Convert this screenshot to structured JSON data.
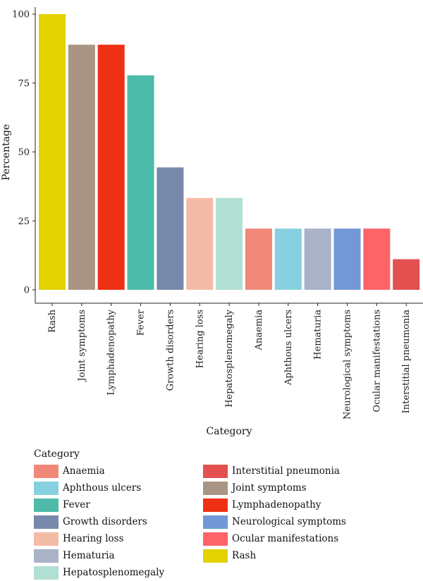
{
  "chart_data": {
    "type": "bar",
    "categories": [
      "Rash",
      "Joint symptoms",
      "Lymphadenopathy",
      "Fever",
      "Growth disorders",
      "Hearing loss",
      "Hepatosplenomegaly",
      "Anaemia",
      "Aphthous ulcers",
      "Hematuria",
      "Neurological symptoms",
      "Ocular manifestations",
      "Interstitial pneumonia"
    ],
    "values": [
      100,
      88.9,
      88.9,
      77.8,
      44.4,
      33.3,
      33.3,
      22.2,
      22.2,
      22.2,
      22.2,
      22.2,
      11.1
    ],
    "colors": [
      "#E2D200",
      "#A89583",
      "#EE3014",
      "#4CBBAA",
      "#7888AA",
      "#F4BBA6",
      "#B2DFD4",
      "#F08878",
      "#87D0E0",
      "#AAB2C8",
      "#7298D8",
      "#FC6469",
      "#E35050"
    ],
    "xlabel": "Category",
    "ylabel": "Percentage",
    "ylim": [
      0,
      100
    ],
    "yticks": [
      0,
      25,
      50,
      75,
      100
    ],
    "grid": false,
    "legend": {
      "title": "Category",
      "placement": "bottom",
      "items": [
        {
          "label": "Anaemia",
          "color": "#F08878"
        },
        {
          "label": "Aphthous ulcers",
          "color": "#87D0E0"
        },
        {
          "label": "Fever",
          "color": "#4CBBAA"
        },
        {
          "label": "Growth disorders",
          "color": "#7888AA"
        },
        {
          "label": "Hearing loss",
          "color": "#F4BBA6"
        },
        {
          "label": "Hematuria",
          "color": "#AAB2C8"
        },
        {
          "label": "Hepatosplenomegaly",
          "color": "#B2DFD4"
        },
        {
          "label": "Interstitial pneumonia",
          "color": "#E35050"
        },
        {
          "label": "Joint symptoms",
          "color": "#A89583"
        },
        {
          "label": "Lymphadenopathy",
          "color": "#EE3014"
        },
        {
          "label": "Neurological symptoms",
          "color": "#7298D8"
        },
        {
          "label": "Ocular manifestations",
          "color": "#FC6469"
        },
        {
          "label": "Rash",
          "color": "#E2D200"
        }
      ]
    }
  }
}
